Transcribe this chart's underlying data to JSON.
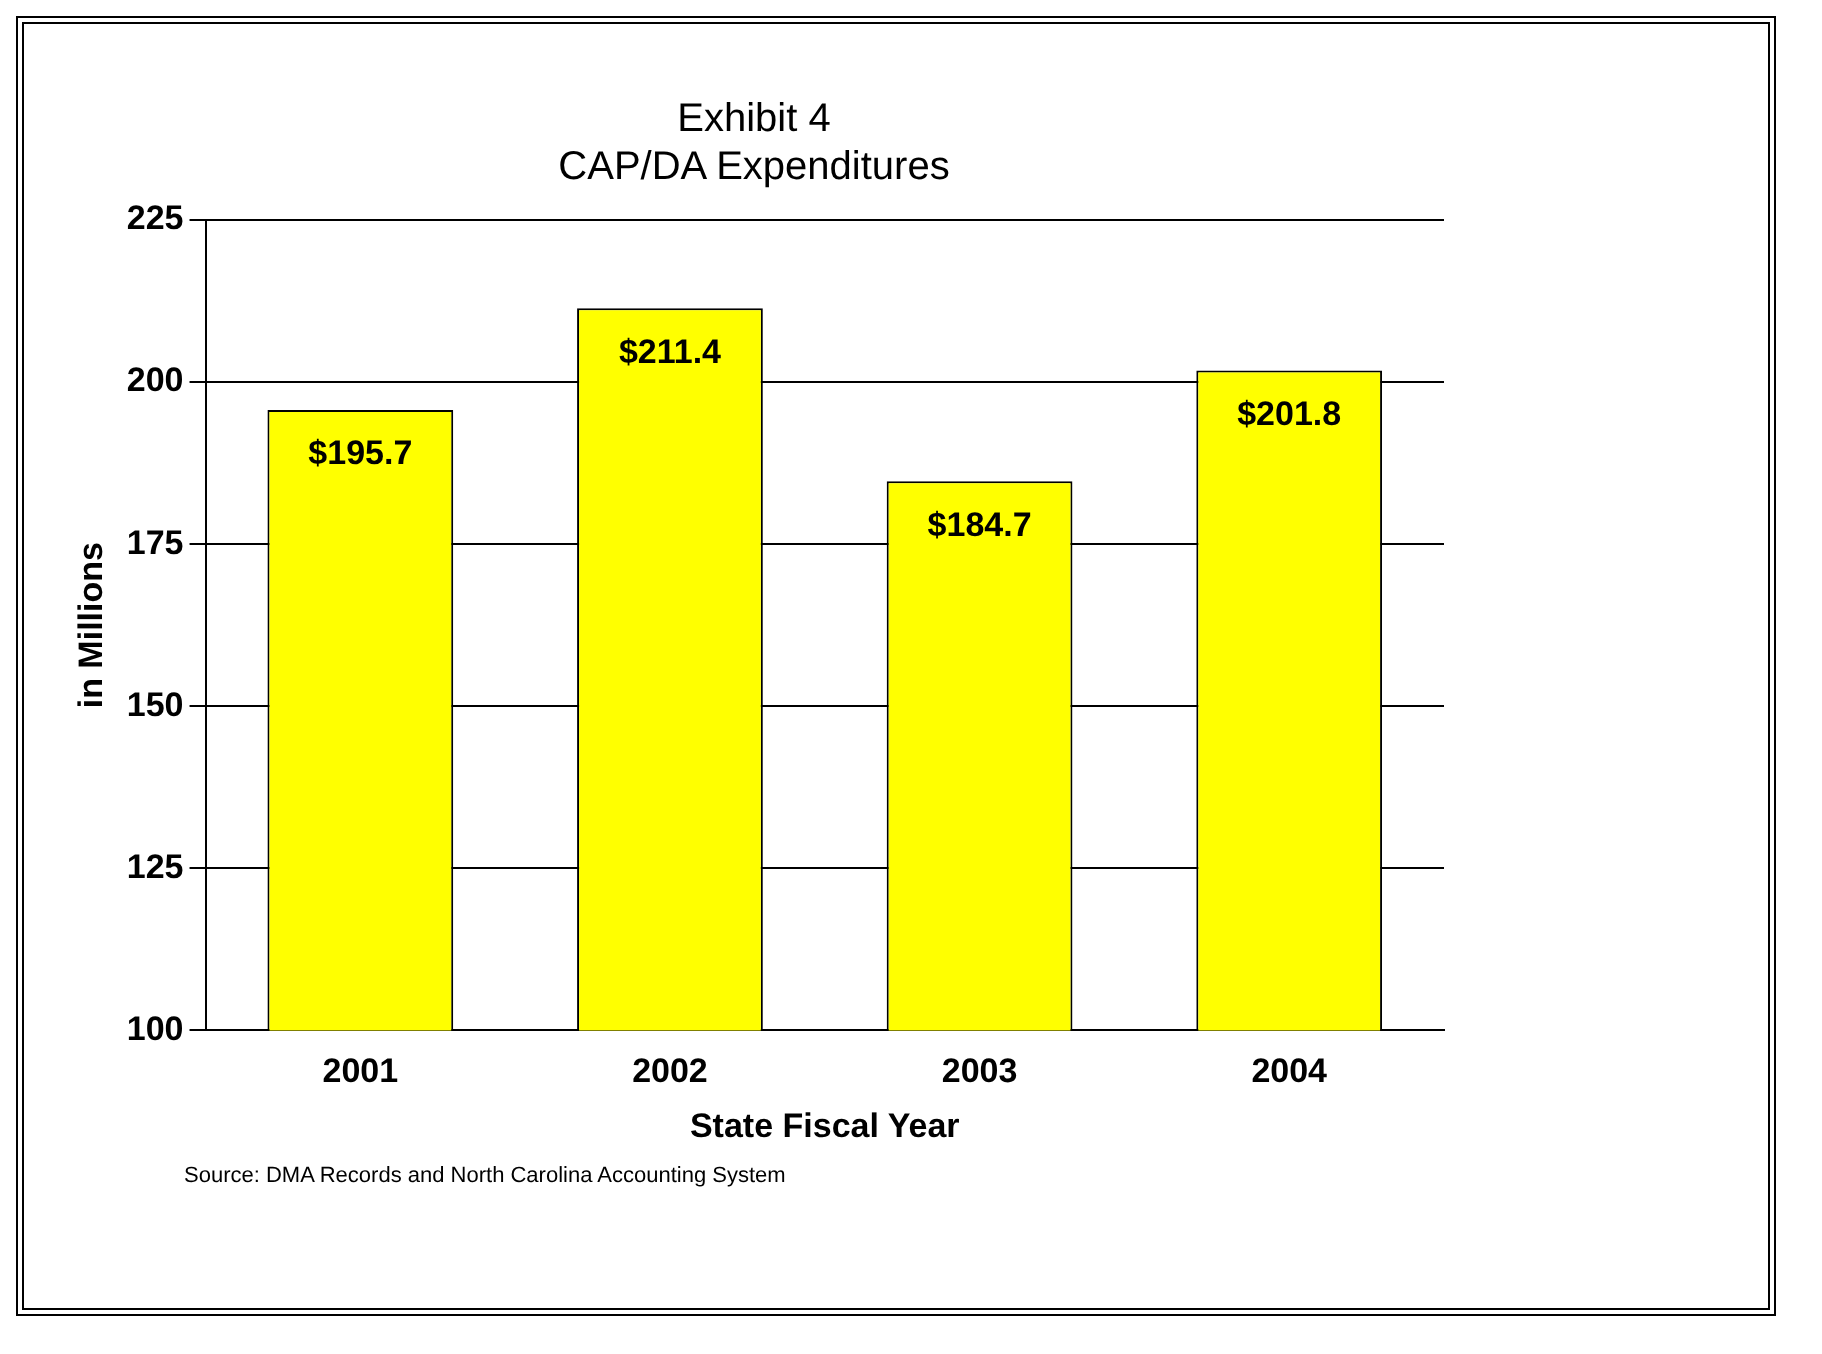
{
  "chart_data": {
    "type": "bar",
    "title": "Exhibit 4",
    "subtitle": "CAP/DA Expenditures",
    "xlabel": "State Fiscal Year",
    "ylabel": "in Millions",
    "categories": [
      "2001",
      "2002",
      "2003",
      "2004"
    ],
    "values": [
      195.7,
      211.4,
      184.7,
      201.8
    ],
    "value_labels": [
      "$195.7",
      "$211.4",
      "$184.7",
      "$201.8"
    ],
    "color": "#ffff00",
    "ylim": [
      100,
      225
    ],
    "yticks": [
      100,
      125,
      150,
      175,
      200,
      225
    ],
    "grid": "y",
    "legend": false,
    "annotations": [
      "Source:  DMA Records and North Carolina Accounting System"
    ]
  }
}
